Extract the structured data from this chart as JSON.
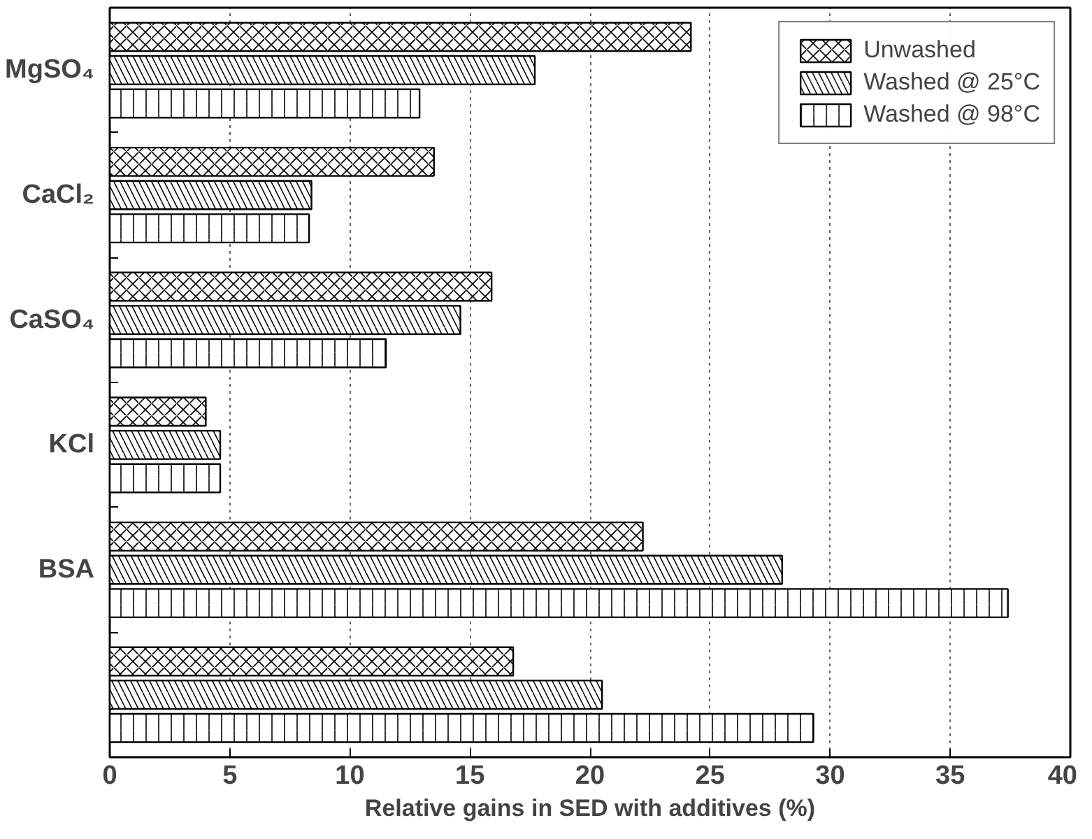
{
  "chart_data": {
    "type": "bar",
    "orientation": "horizontal",
    "xlabel": "Relative gains in SED with additives (%)",
    "categories": [
      "MgSO₄",
      "CaCl₂",
      "CaSO₄",
      "KCl",
      "BSA",
      null
    ],
    "series": [
      {
        "name": "Unwashed",
        "color": "#ffffff",
        "values": [
          24.2,
          13.5,
          15.9,
          4.0,
          22.2,
          16.8
        ]
      },
      {
        "name": "Washed @ 25°C",
        "color": "#ffffff",
        "values": [
          17.7,
          8.4,
          14.6,
          4.6,
          28.0,
          20.5
        ]
      },
      {
        "name": "Washed @ 98°C",
        "color": "#ffffff",
        "values": [
          12.9,
          8.3,
          11.5,
          4.6,
          37.4,
          29.3
        ]
      }
    ],
    "xlim": [
      0,
      40
    ],
    "xticks": [
      0,
      5,
      10,
      15,
      20,
      25,
      30,
      35,
      40
    ],
    "grid": "x",
    "legend": "top right"
  }
}
